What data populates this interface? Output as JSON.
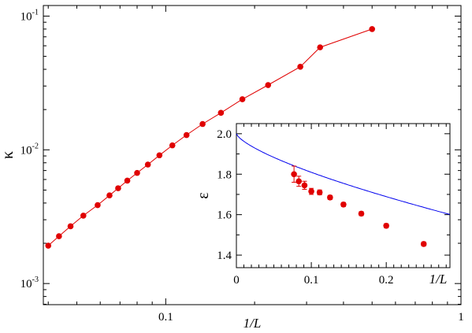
{
  "chart_data": [
    {
      "type": "line",
      "xscale": "log",
      "yscale": "log",
      "xlim": [
        0.0385,
        1.0
      ],
      "ylim": [
        0.000695,
        0.12
      ],
      "xlabel": "1/L",
      "ylabel": "κ",
      "x_ticks": [
        {
          "value": 0.1,
          "label": "0.1"
        },
        {
          "value": 1,
          "label": "1"
        }
      ],
      "y_ticks": [
        {
          "value": 0.001,
          "base": "10",
          "exp": "-3"
        },
        {
          "value": 0.01,
          "base": "10",
          "exp": "-2"
        },
        {
          "value": 0.1,
          "base": "10",
          "exp": "-1"
        }
      ],
      "grid": false,
      "series": [
        {
          "color": "#e00000",
          "marker": "circle",
          "x": [
            0.04,
            0.0435,
            0.0476,
            0.0526,
            0.0588,
            0.0645,
            0.069,
            0.0741,
            0.08,
            0.087,
            0.0952,
            0.1053,
            0.1176,
            0.1333,
            0.1538,
            0.1818,
            0.2222,
            0.2857,
            0.3333,
            0.5
          ],
          "y": [
            0.00192,
            0.00226,
            0.00268,
            0.00322,
            0.00386,
            0.00456,
            0.00516,
            0.00588,
            0.00672,
            0.00776,
            0.0091,
            0.0108,
            0.0129,
            0.0156,
            0.0189,
            0.0239,
            0.0305,
            0.0418,
            0.0584,
            0.08
          ]
        }
      ]
    },
    {
      "type": "scatter",
      "inset": true,
      "xlim": [
        0,
        0.285
      ],
      "ylim": [
        1.338,
        2.05
      ],
      "xlabel": "1/L",
      "ylabel": "ε",
      "x_ticks": [
        "0",
        "0.1",
        "0.2"
      ],
      "y_ticks": [
        "1.4",
        "1.6",
        "1.8",
        "2.0"
      ],
      "grid": false,
      "series": [
        {
          "color": "#e00000",
          "marker": "circle",
          "x": [
            0.0769,
            0.0833,
            0.0909,
            0.1,
            0.1111,
            0.125,
            0.1429,
            0.1667,
            0.2,
            0.25
          ],
          "y": [
            1.8,
            1.765,
            1.745,
            1.715,
            1.71,
            1.685,
            1.65,
            1.605,
            1.545,
            1.455
          ],
          "yerr": [
            0.04,
            0.025,
            0.02,
            0.015,
            0.012,
            0.01,
            0.01,
            0.01,
            0.01,
            0.01
          ]
        },
        {
          "type": "fit",
          "color": "#0000ee",
          "form": "a - b*x^c",
          "params": {
            "a": 2.0,
            "b": 0.967,
            "c": 0.705
          }
        }
      ]
    }
  ]
}
